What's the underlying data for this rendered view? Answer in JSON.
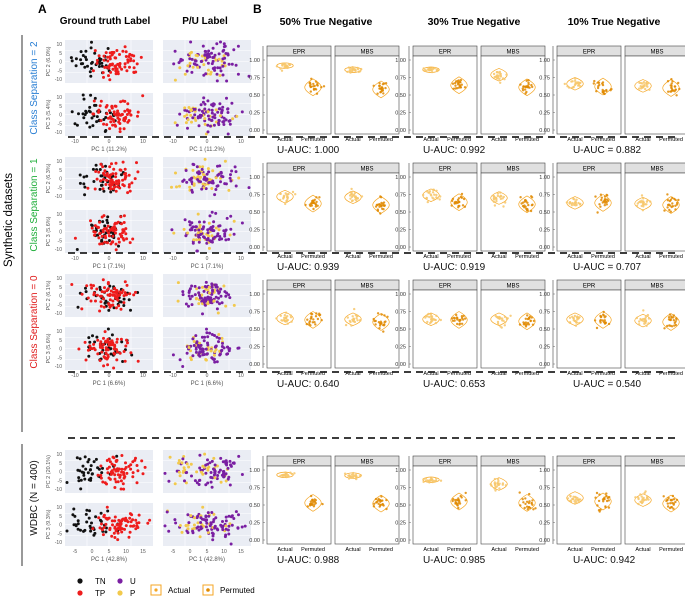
{
  "figure": {
    "panel_a_letter": "A",
    "panel_b_letter": "B",
    "left_title": "Synthetic datasets",
    "col_titles_a": [
      "Ground truth Label",
      "P/U Label"
    ],
    "col_titles_b": [
      "50% True Negative",
      "30% True Negative",
      "10% True Negative"
    ],
    "facet_labels": [
      "EPR",
      "MBS"
    ],
    "x_tick_labels": [
      "Actual",
      "Permuted"
    ],
    "y_ticks": [
      "1.00",
      "0.75",
      "0.50",
      "0.25",
      "0.00"
    ],
    "legend": {
      "tn": "TN",
      "tp": "TP",
      "u": "U",
      "p": "P",
      "actual": "Actual",
      "permuted": "Permuted"
    },
    "colors": {
      "tn": "#111111",
      "tp": "#ee1c1c",
      "u": "#7a1fa2",
      "p": "#f2c94c",
      "orange": "#f5a623",
      "orange_dark": "#e08a00",
      "panel_bg": "#eaedf4",
      "sep2": "#2a7fd4",
      "sep1": "#1fae3a",
      "sep0": "#e01e1e"
    }
  },
  "chart_data": {
    "type": "composite",
    "rows": [
      {
        "label": "Class Separation = 2",
        "color_key": "sep2",
        "pc_labels": [
          "PC 2 (6.0%)",
          "PC 3 (5.4%)"
        ],
        "x_label": "PC 1 (11.2%)",
        "y_ticks": [
          "10",
          "5",
          "0",
          "-5",
          "-10"
        ],
        "x_ticks": [
          "-10",
          "0",
          "10"
        ],
        "separation": 1.0,
        "aucs": [
          "U-AUC: 1.000",
          "U-AUC: 0.992",
          "U-AUC = 0.882"
        ],
        "means": [
          [
            0.92,
            0.61,
            0.86,
            0.58
          ],
          [
            0.86,
            0.64,
            0.79,
            0.61
          ],
          [
            0.66,
            0.62,
            0.63,
            0.6
          ]
        ]
      },
      {
        "label": "Class Separation = 1",
        "color_key": "sep1",
        "pc_labels": [
          "PC 2 (6.3%)",
          "PC 3 (5.6%)"
        ],
        "x_label": "PC 1 (7.1%)",
        "y_ticks": [
          "10",
          "5",
          "0",
          "-5",
          "-10"
        ],
        "x_ticks": [
          "-10",
          "0",
          "10"
        ],
        "separation": 0.55,
        "aucs": [
          "U-AUC: 0.939",
          "U-AUC: 0.919",
          "U-AUC = 0.707"
        ],
        "means": [
          [
            0.72,
            0.62,
            0.71,
            0.6
          ],
          [
            0.74,
            0.64,
            0.7,
            0.61
          ],
          [
            0.63,
            0.63,
            0.62,
            0.6
          ]
        ]
      },
      {
        "label": "Class Separation = 0",
        "color_key": "sep0",
        "pc_labels": [
          "PC 2 (6.1%)",
          "PC 3 (5.6%)"
        ],
        "x_label": "PC 1 (6.6%)",
        "y_ticks": [
          "10",
          "5",
          "0",
          "-5",
          "-10"
        ],
        "x_ticks": [
          "-10",
          "0",
          "10"
        ],
        "separation": 0.1,
        "aucs": [
          "U-AUC: 0.640",
          "U-AUC: 0.653",
          "U-AUC = 0.540"
        ],
        "means": [
          [
            0.65,
            0.63,
            0.64,
            0.6
          ],
          [
            0.64,
            0.63,
            0.64,
            0.61
          ],
          [
            0.64,
            0.63,
            0.62,
            0.6
          ]
        ]
      },
      {
        "label": "WDBC (N = 400)",
        "color_key": "tn",
        "pc_labels": [
          "PC 2 (20.1%)",
          "PC 3 (9.3%)"
        ],
        "x_label": "PC 1 (42.8%)",
        "y_ticks": [
          "10",
          "5",
          "0",
          "-5",
          "-10"
        ],
        "x_ticks": [
          "-5",
          "0",
          "5",
          "10",
          "15"
        ],
        "separation": 1.4,
        "aucs": [
          "U-AUC: 0.988",
          "U-AUC: 0.985",
          "U-AUC: 0.942"
        ],
        "means": [
          [
            0.93,
            0.53,
            0.92,
            0.52
          ],
          [
            0.86,
            0.55,
            0.8,
            0.53
          ],
          [
            0.6,
            0.55,
            0.57,
            0.52
          ]
        ]
      }
    ],
    "y_range": [
      0,
      1
    ],
    "violin_x_categories": [
      "Actual",
      "Permuted"
    ]
  }
}
